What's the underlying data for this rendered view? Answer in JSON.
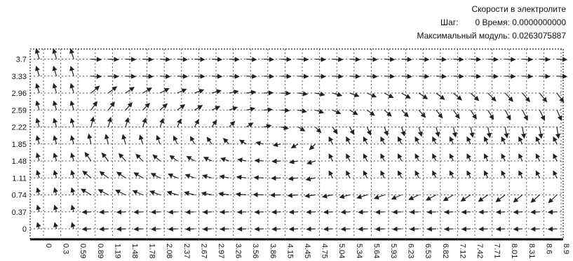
{
  "header": {
    "title": "Скорости в электролите",
    "step_label": "Шаг:",
    "step_value": "0",
    "time_label": "Время:",
    "time_value": "0.0000000000",
    "max_label": "Максимальный модуль:",
    "max_value": "0.0263075887"
  },
  "chart_data": {
    "type": "scatter",
    "subtype": "vector-field",
    "grid": true,
    "line_style": "dotted",
    "yticks": [
      "0",
      "0.37",
      "0.74",
      "1.11",
      "1.48",
      "1.85",
      "2.22",
      "2.59",
      "2.96",
      "3.33",
      "3.7"
    ],
    "xticks": [
      "0",
      "0.3",
      "0.59",
      "0.89",
      "1.19",
      "1.48",
      "1.78",
      "2.08",
      "2.37",
      "2.67",
      "2.97",
      "3.26",
      "3.56",
      "3.86",
      "4.15",
      "4.45",
      "4.75",
      "5.04",
      "5.34",
      "5.64",
      "5.93",
      "6.23",
      "6.53",
      "6.82",
      "7.12",
      "7.42",
      "7.71",
      "8.01",
      "8.31",
      "8.6",
      "8.9"
    ],
    "xlim": [
      0,
      8.9
    ],
    "ylim": [
      0,
      3.7
    ],
    "colors": {
      "arrow": "#222222",
      "grid": "#555555",
      "axis": "#000000"
    }
  }
}
